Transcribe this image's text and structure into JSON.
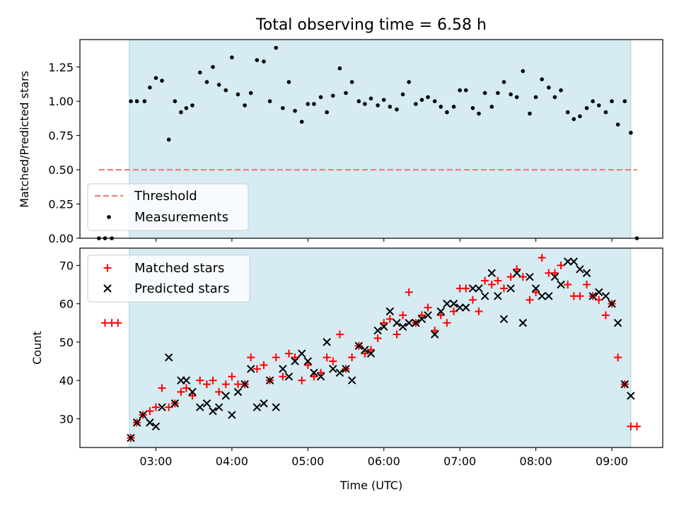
{
  "chart_data": [
    {
      "type": "scatter",
      "title": "Total observing time = 6.58 h",
      "xlabel": "",
      "ylabel": "Matched/Predicted stars",
      "ylim": [
        0,
        1.45
      ],
      "xlim": [
        2.0,
        9.67
      ],
      "yticks": [
        "0.00",
        "0.25",
        "0.50",
        "0.75",
        "1.00",
        "1.25"
      ],
      "ytick_values": [
        0,
        0.25,
        0.5,
        0.75,
        1.0,
        1.25
      ],
      "shaded_region": [
        2.65,
        9.25
      ],
      "threshold": {
        "name": "Threshold",
        "y": 0.5,
        "x_range": [
          2.25,
          9.33
        ],
        "color": "#f08080"
      },
      "legend": {
        "placement": "lower-left",
        "entries": [
          "Threshold",
          "Measurements"
        ]
      },
      "series": [
        {
          "name": "Measurements",
          "marker": "dot",
          "color": "#000000",
          "points": [
            [
              2.25,
              0
            ],
            [
              2.33,
              0
            ],
            [
              2.42,
              0
            ],
            [
              2.67,
              1.0
            ],
            [
              2.75,
              1.0
            ],
            [
              2.85,
              1.0
            ],
            [
              2.92,
              1.1
            ],
            [
              3.0,
              1.17
            ],
            [
              3.08,
              1.15
            ],
            [
              3.17,
              0.72
            ],
            [
              3.25,
              1.0
            ],
            [
              3.33,
              0.92
            ],
            [
              3.4,
              0.95
            ],
            [
              3.48,
              0.97
            ],
            [
              3.58,
              1.21
            ],
            [
              3.67,
              1.14
            ],
            [
              3.75,
              1.25
            ],
            [
              3.83,
              1.12
            ],
            [
              3.92,
              1.08
            ],
            [
              4.0,
              1.32
            ],
            [
              4.08,
              1.05
            ],
            [
              4.17,
              0.97
            ],
            [
              4.25,
              1.06
            ],
            [
              4.33,
              1.3
            ],
            [
              4.42,
              1.29
            ],
            [
              4.5,
              1.0
            ],
            [
              4.58,
              1.39
            ],
            [
              4.67,
              0.95
            ],
            [
              4.75,
              1.14
            ],
            [
              4.83,
              0.93
            ],
            [
              4.92,
              0.85
            ],
            [
              5.0,
              0.98
            ],
            [
              5.08,
              0.98
            ],
            [
              5.17,
              1.03
            ],
            [
              5.25,
              0.92
            ],
            [
              5.33,
              1.04
            ],
            [
              5.42,
              1.24
            ],
            [
              5.5,
              1.06
            ],
            [
              5.58,
              1.14
            ],
            [
              5.67,
              1.0
            ],
            [
              5.75,
              0.98
            ],
            [
              5.83,
              1.02
            ],
            [
              5.92,
              0.97
            ],
            [
              6.0,
              1.01
            ],
            [
              6.08,
              0.96
            ],
            [
              6.17,
              0.94
            ],
            [
              6.25,
              1.05
            ],
            [
              6.33,
              1.14
            ],
            [
              6.42,
              0.98
            ],
            [
              6.5,
              1.01
            ],
            [
              6.58,
              1.03
            ],
            [
              6.67,
              1.0
            ],
            [
              6.75,
              0.96
            ],
            [
              6.83,
              0.92
            ],
            [
              6.92,
              0.96
            ],
            [
              7.0,
              1.08
            ],
            [
              7.08,
              1.08
            ],
            [
              7.17,
              0.95
            ],
            [
              7.25,
              0.91
            ],
            [
              7.33,
              1.06
            ],
            [
              7.42,
              0.96
            ],
            [
              7.5,
              1.06
            ],
            [
              7.58,
              1.14
            ],
            [
              7.67,
              1.05
            ],
            [
              7.75,
              1.03
            ],
            [
              7.83,
              1.22
            ],
            [
              7.92,
              0.91
            ],
            [
              8.0,
              1.03
            ],
            [
              8.08,
              1.16
            ],
            [
              8.17,
              1.1
            ],
            [
              8.25,
              1.03
            ],
            [
              8.33,
              1.08
            ],
            [
              8.42,
              0.92
            ],
            [
              8.5,
              0.87
            ],
            [
              8.58,
              0.89
            ],
            [
              8.67,
              0.95
            ],
            [
              8.75,
              1.0
            ],
            [
              8.83,
              0.97
            ],
            [
              8.92,
              0.92
            ],
            [
              9.0,
              1.0
            ],
            [
              9.08,
              0.83
            ],
            [
              9.17,
              1.0
            ],
            [
              9.25,
              0.77
            ],
            [
              9.33,
              0
            ]
          ]
        }
      ]
    },
    {
      "type": "scatter",
      "title": "",
      "xlabel": "Time (UTC)",
      "ylabel": "Count",
      "ylim": [
        22.5,
        74.5
      ],
      "xlim": [
        2.0,
        9.67
      ],
      "yticks": [
        "30",
        "40",
        "50",
        "60",
        "70"
      ],
      "ytick_values": [
        30,
        40,
        50,
        60,
        70
      ],
      "xticks": [
        "03:00",
        "04:00",
        "05:00",
        "06:00",
        "07:00",
        "08:00",
        "09:00"
      ],
      "xtick_values": [
        3,
        4,
        5,
        6,
        7,
        8,
        9
      ],
      "shaded_region": [
        2.65,
        9.25
      ],
      "legend": {
        "placement": "upper-left",
        "entries": [
          "Matched stars",
          "Predicted stars"
        ]
      },
      "series": [
        {
          "name": "Matched stars",
          "marker": "plus",
          "color": "#ff0000",
          "points": [
            [
              2.33,
              55
            ],
            [
              2.42,
              55
            ],
            [
              2.5,
              55
            ],
            [
              2.67,
              25
            ],
            [
              2.75,
              29
            ],
            [
              2.83,
              31
            ],
            [
              2.92,
              32
            ],
            [
              3.0,
              33
            ],
            [
              3.08,
              38
            ],
            [
              3.17,
              33
            ],
            [
              3.25,
              34
            ],
            [
              3.33,
              37
            ],
            [
              3.4,
              38
            ],
            [
              3.48,
              36
            ],
            [
              3.58,
              40
            ],
            [
              3.67,
              39
            ],
            [
              3.75,
              40
            ],
            [
              3.83,
              37
            ],
            [
              3.92,
              39
            ],
            [
              4.0,
              41
            ],
            [
              4.08,
              39
            ],
            [
              4.17,
              39
            ],
            [
              4.25,
              46
            ],
            [
              4.33,
              43
            ],
            [
              4.42,
              44
            ],
            [
              4.5,
              40
            ],
            [
              4.58,
              46
            ],
            [
              4.67,
              41
            ],
            [
              4.75,
              47
            ],
            [
              4.83,
              46
            ],
            [
              4.92,
              40
            ],
            [
              5.0,
              44
            ],
            [
              5.08,
              41
            ],
            [
              5.17,
              42
            ],
            [
              5.25,
              46
            ],
            [
              5.33,
              45
            ],
            [
              5.42,
              52
            ],
            [
              5.5,
              43
            ],
            [
              5.58,
              46
            ],
            [
              5.67,
              49
            ],
            [
              5.75,
              47
            ],
            [
              5.83,
              48
            ],
            [
              5.92,
              51
            ],
            [
              6.0,
              55
            ],
            [
              6.08,
              56
            ],
            [
              6.17,
              52
            ],
            [
              6.25,
              57
            ],
            [
              6.33,
              63
            ],
            [
              6.42,
              55
            ],
            [
              6.5,
              57
            ],
            [
              6.58,
              59
            ],
            [
              6.67,
              53
            ],
            [
              6.75,
              57
            ],
            [
              6.83,
              55
            ],
            [
              6.92,
              58
            ],
            [
              7.0,
              64
            ],
            [
              7.08,
              64
            ],
            [
              7.17,
              61
            ],
            [
              7.25,
              58
            ],
            [
              7.33,
              66
            ],
            [
              7.42,
              65
            ],
            [
              7.5,
              66
            ],
            [
              7.58,
              64
            ],
            [
              7.67,
              67
            ],
            [
              7.75,
              69
            ],
            [
              7.83,
              67
            ],
            [
              7.92,
              61
            ],
            [
              8.0,
              63
            ],
            [
              8.08,
              72
            ],
            [
              8.17,
              68
            ],
            [
              8.25,
              68
            ],
            [
              8.33,
              70
            ],
            [
              8.42,
              65
            ],
            [
              8.5,
              62
            ],
            [
              8.58,
              62
            ],
            [
              8.67,
              65
            ],
            [
              8.75,
              62
            ],
            [
              8.83,
              61
            ],
            [
              8.92,
              57
            ],
            [
              9.0,
              60
            ],
            [
              9.08,
              46
            ],
            [
              9.17,
              39
            ],
            [
              9.25,
              28
            ],
            [
              9.33,
              28
            ]
          ]
        },
        {
          "name": "Predicted stars",
          "marker": "x",
          "color": "#000000",
          "points": [
            [
              2.67,
              25
            ],
            [
              2.75,
              29
            ],
            [
              2.83,
              31
            ],
            [
              2.92,
              29
            ],
            [
              3.0,
              28
            ],
            [
              3.08,
              33
            ],
            [
              3.17,
              46
            ],
            [
              3.25,
              34
            ],
            [
              3.33,
              40
            ],
            [
              3.4,
              40
            ],
            [
              3.48,
              37
            ],
            [
              3.58,
              33
            ],
            [
              3.67,
              34
            ],
            [
              3.75,
              32
            ],
            [
              3.83,
              33
            ],
            [
              3.92,
              36
            ],
            [
              4.0,
              31
            ],
            [
              4.08,
              37
            ],
            [
              4.17,
              39
            ],
            [
              4.25,
              43
            ],
            [
              4.33,
              33
            ],
            [
              4.42,
              34
            ],
            [
              4.5,
              40
            ],
            [
              4.58,
              33
            ],
            [
              4.67,
              43
            ],
            [
              4.75,
              41
            ],
            [
              4.83,
              45
            ],
            [
              4.92,
              47
            ],
            [
              5.0,
              45
            ],
            [
              5.08,
              42
            ],
            [
              5.17,
              41
            ],
            [
              5.25,
              50
            ],
            [
              5.33,
              43
            ],
            [
              5.42,
              42
            ],
            [
              5.5,
              43
            ],
            [
              5.58,
              40
            ],
            [
              5.67,
              49
            ],
            [
              5.75,
              48
            ],
            [
              5.83,
              47
            ],
            [
              5.92,
              53
            ],
            [
              6.0,
              54
            ],
            [
              6.08,
              58
            ],
            [
              6.17,
              55
            ],
            [
              6.25,
              54
            ],
            [
              6.33,
              55
            ],
            [
              6.42,
              55
            ],
            [
              6.5,
              56
            ],
            [
              6.58,
              57
            ],
            [
              6.67,
              52
            ],
            [
              6.75,
              58
            ],
            [
              6.83,
              60
            ],
            [
              6.92,
              60
            ],
            [
              7.0,
              59
            ],
            [
              7.08,
              59
            ],
            [
              7.17,
              64
            ],
            [
              7.25,
              64
            ],
            [
              7.33,
              62
            ],
            [
              7.42,
              68
            ],
            [
              7.5,
              62
            ],
            [
              7.58,
              56
            ],
            [
              7.67,
              64
            ],
            [
              7.75,
              68
            ],
            [
              7.83,
              55
            ],
            [
              7.92,
              67
            ],
            [
              8.0,
              64
            ],
            [
              8.08,
              62
            ],
            [
              8.17,
              62
            ],
            [
              8.25,
              67
            ],
            [
              8.33,
              65
            ],
            [
              8.42,
              71
            ],
            [
              8.5,
              71
            ],
            [
              8.58,
              69
            ],
            [
              8.67,
              68
            ],
            [
              8.75,
              62
            ],
            [
              8.83,
              63
            ],
            [
              8.92,
              62
            ],
            [
              9.0,
              60
            ],
            [
              9.08,
              55
            ],
            [
              9.17,
              39
            ],
            [
              9.25,
              36
            ]
          ]
        }
      ]
    }
  ]
}
